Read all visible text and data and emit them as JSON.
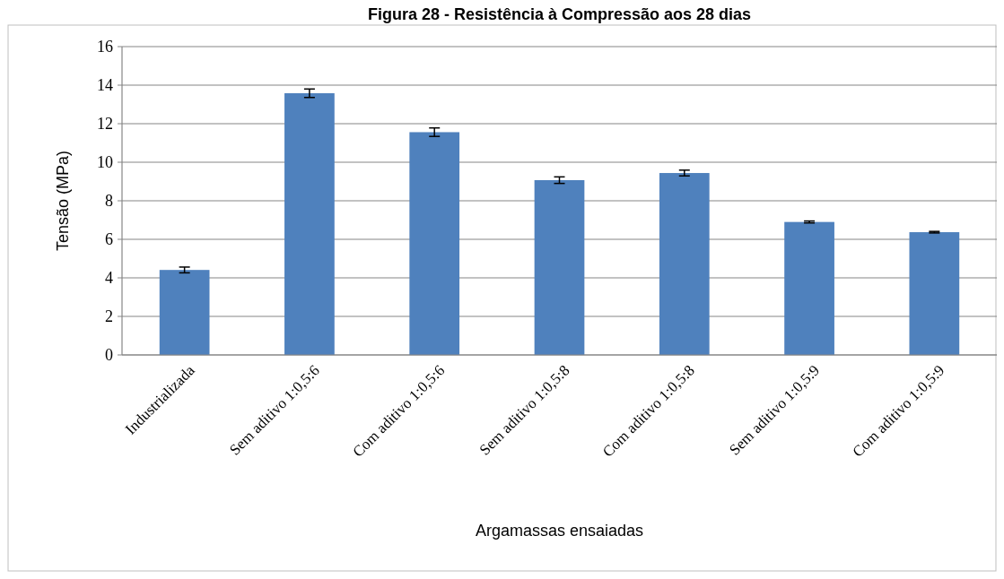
{
  "chart_data": {
    "type": "bar",
    "title": "Figura 28 - Resistência à Compressão aos 28 dias",
    "xlabel": "Argamassas ensaiadas",
    "ylabel": "Tensão (MPa)",
    "categories": [
      "Industrializada",
      "Sem aditivo 1:0,5:6",
      "Com aditivo 1:0,5:6",
      "Sem aditivo 1:0,5:8",
      "Com aditivo 1:0,5:8",
      "Sem aditivo 1:0,5:9",
      "Com aditivo 1:0,5:9"
    ],
    "values": [
      4.41,
      13.58,
      11.56,
      9.07,
      9.44,
      6.9,
      6.37
    ],
    "errors": [
      0.15,
      0.22,
      0.22,
      0.17,
      0.15,
      0.05,
      0.04
    ],
    "color": "#4f81bd",
    "ylim": [
      0,
      16
    ],
    "yticks": [
      0,
      2,
      4,
      6,
      8,
      10,
      12,
      14,
      16
    ],
    "grid": "y"
  }
}
